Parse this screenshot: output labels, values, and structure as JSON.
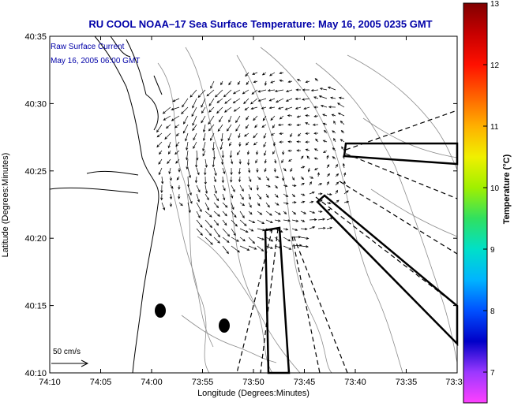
{
  "title": "RU COOL  NOAA–17  Sea Surface Temperature:  May 16, 2005 0235 GMT",
  "annotation": {
    "line1": "Raw Surface Current",
    "line2": "May 16, 2005 06:00 GMT"
  },
  "scale_label": "50 cm/s",
  "x_axis": {
    "label": "Longitude (Degrees:Minutes)",
    "ticks": [
      "74:10",
      "74:05",
      "74:00",
      "73:55",
      "73:50",
      "73:45",
      "73:40",
      "73:35",
      "73:3"
    ]
  },
  "y_axis": {
    "label": "Latitude (Degrees:Minutes)",
    "ticks": [
      "40:35",
      "40:30",
      "40:25",
      "40:20",
      "40:15",
      "40:10"
    ]
  },
  "colorbar": {
    "label": "Temperature (°C)",
    "ticks": [
      "13",
      "12",
      "11",
      "10",
      "9",
      "8",
      "7"
    ],
    "colors": [
      "#ff40ff",
      "#9a38ff",
      "#0000c8",
      "#0050ff",
      "#00b4ff",
      "#00e0c8",
      "#30e060",
      "#a0f000",
      "#f0f000",
      "#ffb000",
      "#ff6000",
      "#ff1000",
      "#c80000",
      "#800000"
    ]
  },
  "chart_data": {
    "type": "map",
    "title": "RU COOL  NOAA–17  Sea Surface Temperature:  May 16, 2005 0235 GMT",
    "xlabel": "Longitude (Degrees:Minutes)",
    "ylabel": "Latitude (Degrees:Minutes)",
    "xlim_deg_min": [
      "74:10",
      "73:30"
    ],
    "ylim_deg_min": [
      "40:10",
      "40:35"
    ],
    "colorbar_range_c": [
      6.5,
      13
    ],
    "vector_field": "raw surface current vectors, 50 cm/s reference arrow",
    "markers": [
      "filled ellipse",
      "filled ellipse"
    ]
  }
}
